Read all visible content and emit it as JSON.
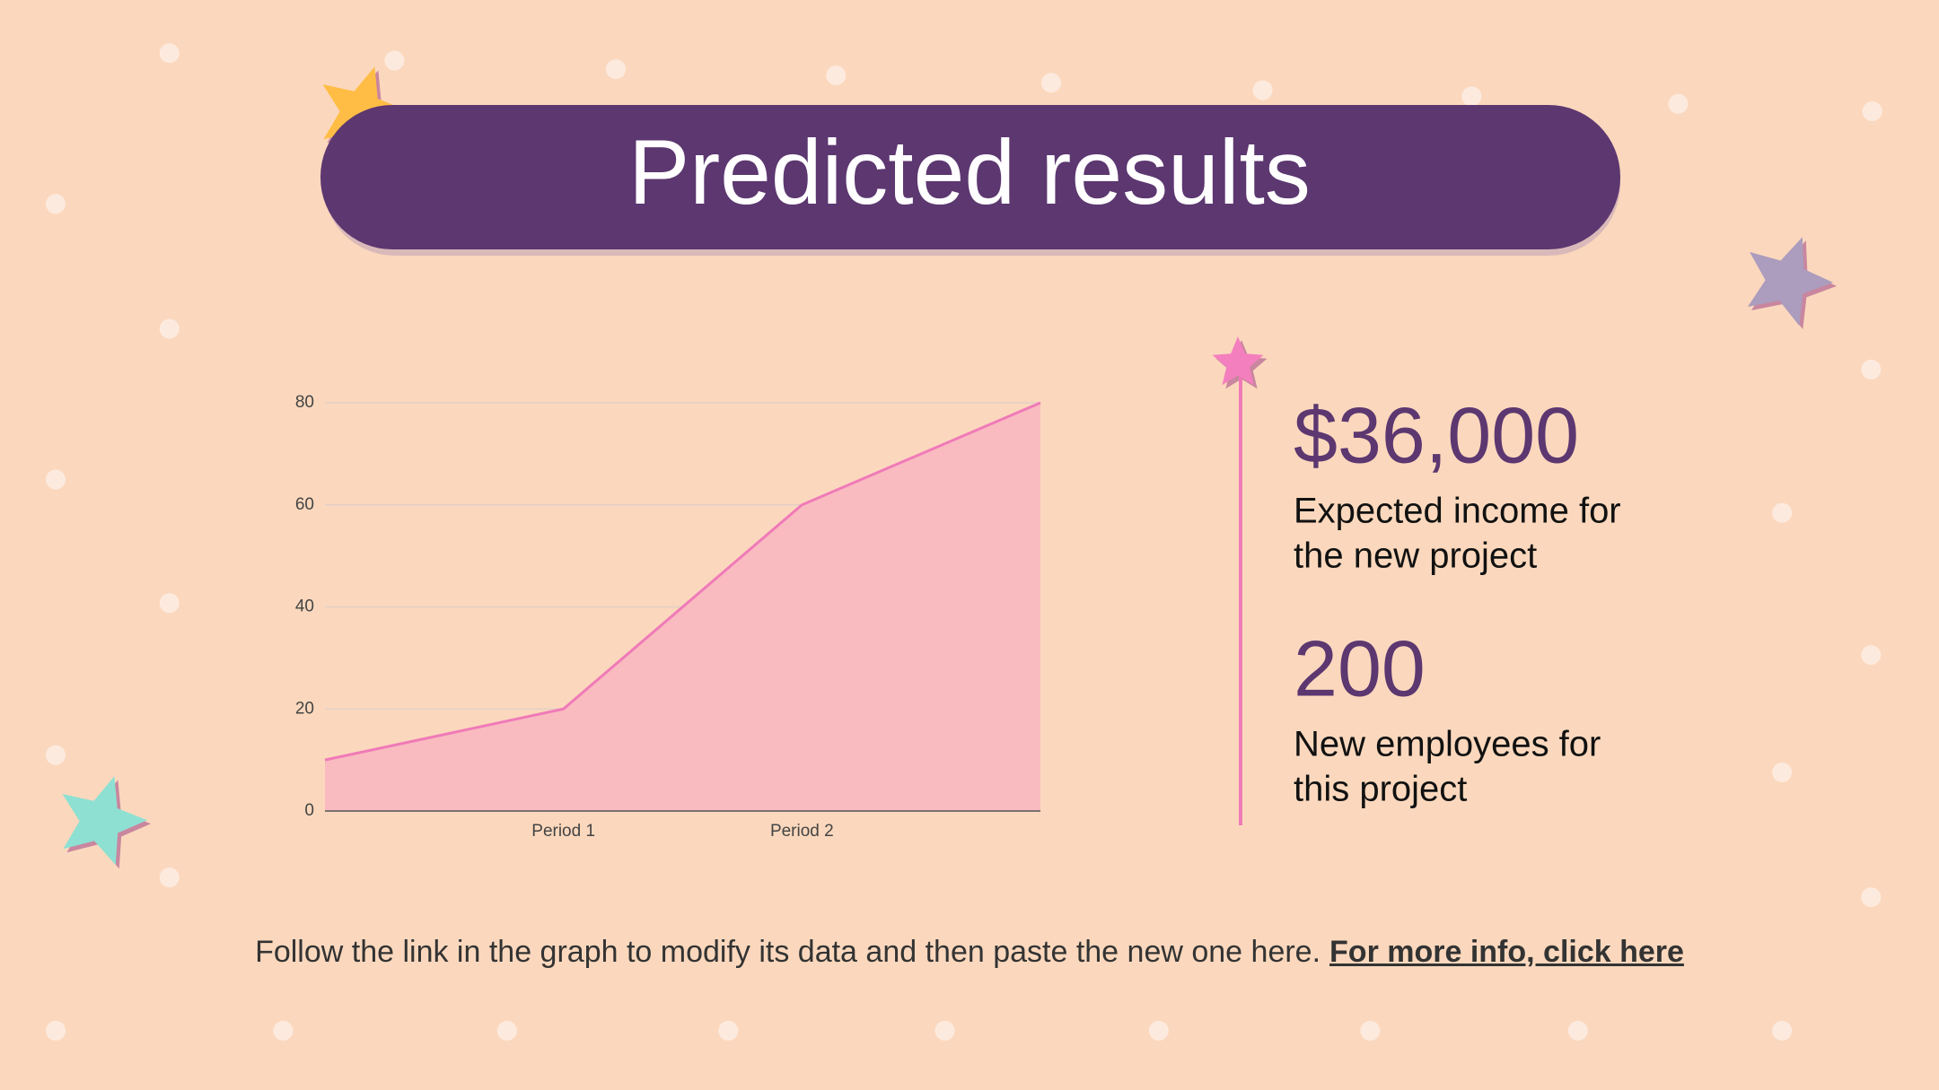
{
  "title": "Predicted results",
  "chart_data": {
    "type": "area",
    "categories": [
      null,
      "Period 1",
      "Period 2",
      null
    ],
    "values": [
      10,
      20,
      60,
      80
    ],
    "color": "#f07ab8",
    "fill": "#f9bbc0",
    "ylim": [
      0,
      80
    ],
    "yticks": [
      0,
      20,
      40,
      60,
      80
    ],
    "grid": true
  },
  "stats": [
    {
      "value": "$36,000",
      "label": [
        "Expected income for",
        "the new project"
      ]
    },
    {
      "value": "200",
      "label": [
        "New employees for",
        "this project"
      ]
    }
  ],
  "footer": {
    "text": "Follow the link in the graph to modify its data and then paste the new one here.",
    "link": "For more info, click here"
  }
}
